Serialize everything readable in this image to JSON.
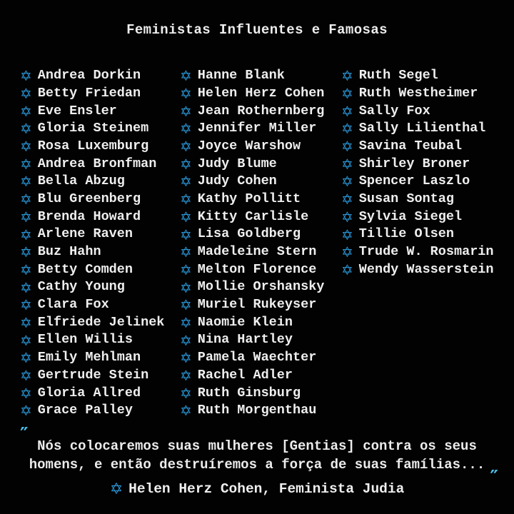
{
  "title": "Feministas Influentes e Famosas",
  "colors": {
    "background": "#020202",
    "text": "#efefef",
    "star": "#2b97d8",
    "quote_mark": "#49c0ec"
  },
  "star_icon": "✡",
  "columns": [
    {
      "names": [
        "Andrea Dorkin",
        "Betty Friedan",
        "Eve Ensler",
        "Gloria Steinem",
        "Rosa Luxemburg",
        "Andrea Bronfman",
        "Bella Abzug",
        "Blu Greenberg",
        "Brenda Howard",
        "Arlene Raven",
        "Buz Hahn",
        "Betty Comden",
        "Cathy Young",
        "Clara Fox",
        "Elfriede Jelinek",
        "Ellen Willis",
        "Emily Mehlman",
        "Gertrude Stein",
        "Gloria Allred",
        "Grace Palley"
      ]
    },
    {
      "names": [
        "Hanne Blank",
        "Helen Herz Cohen",
        "Jean Rothernberg",
        "Jennifer Miller",
        "Joyce Warshow",
        "Judy Blume",
        "Judy Cohen",
        "Kathy Pollitt",
        "Kitty Carlisle",
        "Lisa Goldberg",
        "Madeleine Stern",
        "Melton Florence",
        "Mollie Orshansky",
        "Muriel Rukeyser",
        "Naomie Klein",
        "Nina Hartley",
        "Pamela Waechter",
        "Rachel Adler",
        "Ruth Ginsburg",
        "Ruth Morgenthau"
      ]
    },
    {
      "names": [
        "Ruth Segel",
        "Ruth Westheimer",
        "Sally Fox",
        "Sally Lilienthal",
        "Savina Teubal",
        "Shirley Broner",
        "Spencer Laszlo",
        "Susan Sontag",
        "Sylvia Siegel",
        "Tillie Olsen",
        "Trude W. Rosmarin",
        "Wendy Wasserstein"
      ]
    }
  ],
  "quote": {
    "open_mark": "″",
    "close_mark": "″",
    "lines": [
      "Nós colocaremos suas mulheres [Gentias] contra os seus",
      "homens, e então destruíremos a força de suas famílias..."
    ]
  },
  "attribution": {
    "text": "Helen Herz Cohen, Feminista Judia"
  }
}
